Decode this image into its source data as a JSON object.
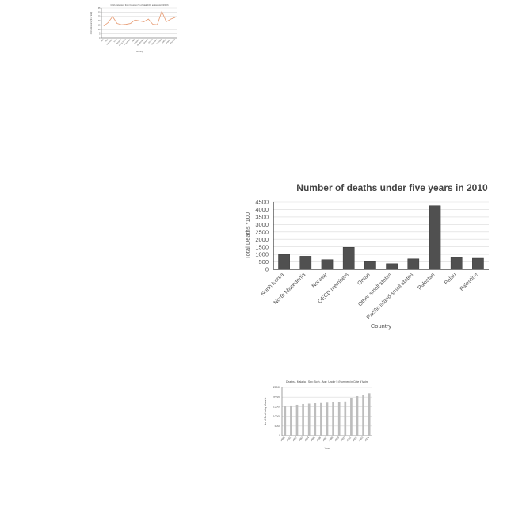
{
  "chart_data": [
    {
      "type": "line",
      "title": "CO2 emissions from housing (% of total CO2 emissions) (1990)",
      "xlabel": "Country",
      "ylabel": "CO2 emissions (% of total)",
      "ylim": [
        0,
        35
      ],
      "yticks": [
        0,
        5,
        10,
        15,
        20,
        25,
        30,
        35
      ],
      "categories": [
        "Iraq",
        "Iran",
        "Indonesia",
        "India",
        "Hungary",
        "Hong Kong",
        "Honduras",
        "Haiti",
        "Guyana",
        "Guatemala",
        "Greece",
        "Ghana",
        "Germany",
        "Georgia",
        "Gabon",
        "France",
        "Finland"
      ],
      "series": [
        {
          "name": "",
          "color": "#e8a07a",
          "values": [
            14,
            18,
            25,
            17,
            15.5,
            16,
            17,
            21,
            20,
            19,
            22,
            16,
            15.5,
            31,
            19,
            22,
            24
          ]
        }
      ]
    },
    {
      "type": "bar",
      "title": "Number of deaths under five years in 2010",
      "xlabel": "Country",
      "ylabel": "Total Deaths *100",
      "ylim": [
        0,
        4500
      ],
      "yticks": [
        0,
        500,
        1000,
        1500,
        2000,
        2500,
        3000,
        3500,
        4000,
        4500
      ],
      "categories": [
        "North Korea",
        "North Macedonia",
        "Norway",
        "OECD members",
        "Oman",
        "Other small states",
        "Pacific island small states",
        "Pakistan",
        "Palau",
        "Palestine"
      ],
      "values": [
        1000,
        880,
        650,
        1470,
        530,
        380,
        700,
        4250,
        800,
        740
      ],
      "color": "#505050"
    },
    {
      "type": "bar",
      "title": "Deaths - Malaria - Sex: Both - Age: Under 5 (Number) in Cote d'Ivoire",
      "xlabel": "Year",
      "ylabel": "No of Deaths by Malaria",
      "ylim": [
        0,
        25000
      ],
      "yticks": [
        0,
        5000,
        10000,
        15000,
        20000,
        25000
      ],
      "categories": [
        "1990",
        "1991",
        "1992",
        "1993",
        "1994",
        "1995",
        "1996",
        "1997",
        "1998",
        "1999",
        "2000",
        "2001",
        "2002",
        "2003",
        "2004"
      ],
      "values": [
        15200,
        15600,
        16000,
        16400,
        16600,
        16800,
        16900,
        17100,
        17300,
        17500,
        17700,
        19500,
        20500,
        21300,
        22000
      ],
      "color": "#bdbdbd"
    }
  ]
}
